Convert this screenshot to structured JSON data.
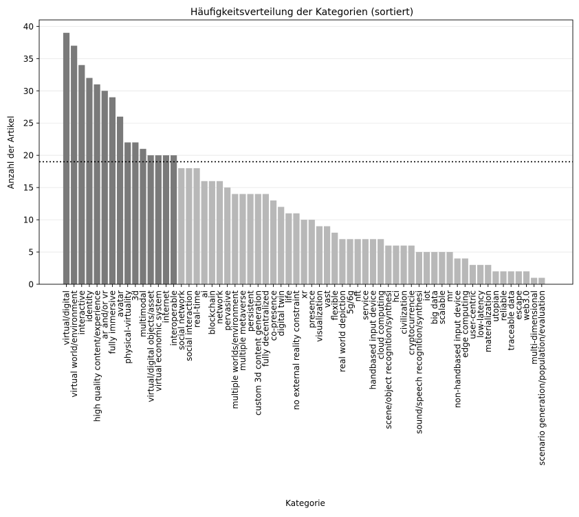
{
  "chart_data": {
    "type": "bar",
    "title": "Häufigkeitsverteilung der Kategorien (sortiert)",
    "xlabel": "Kategorie",
    "ylabel": "Anzahl der Artikel",
    "ylim": [
      0,
      41
    ],
    "yticks": [
      0,
      5,
      10,
      15,
      20,
      25,
      30,
      35,
      40
    ],
    "grid": "y",
    "threshold": 19,
    "highlight_color": "#7a7a7a",
    "base_color": "#b8b8b8",
    "highlighted_count": 15,
    "categories": [
      "virtual/digital",
      "virtual world/environment",
      "interactive",
      "identity",
      "high quality content/experience",
      "ar and/or vr",
      "fully immersive",
      "avatar",
      "physical-virtuality",
      "3d",
      "multimodal",
      "virtual/digital objects/asset",
      "virtual economic system",
      "internet",
      "interoperable",
      "social network",
      "social interaction",
      "real-time",
      "ai",
      "blockchain",
      "network",
      "pervasive",
      "multiple worlds/environment",
      "multiple metaverse",
      "persistent",
      "custom 3d content generation",
      "fully decentralized",
      "co-presence",
      "digital twin",
      "life",
      "no external reality constraint",
      "xr",
      "presence",
      "visualization",
      "vast",
      "flexible",
      "real world depiction",
      "5g/6g",
      "nft",
      "service",
      "handbased input device",
      "cloud computing",
      "scene/object recognition/synthesi",
      "hci",
      "civilization",
      "cryptocurrencie",
      "sound/speech recognition/synthesi",
      "iot",
      "big data",
      "scalable",
      "mr",
      "non-handbased input device",
      "edge computing",
      "user-centric",
      "low-latency",
      "materialization",
      "utopian",
      "reliable",
      "traceable data",
      "escape",
      "web3.0",
      "multi-dimensional",
      "scenario generation/population/evaluation"
    ],
    "values": [
      39,
      37,
      34,
      32,
      31,
      30,
      29,
      26,
      22,
      22,
      21,
      20,
      20,
      20,
      20,
      18,
      18,
      18,
      16,
      16,
      16,
      15,
      14,
      14,
      14,
      14,
      14,
      13,
      12,
      11,
      11,
      10,
      10,
      9,
      9,
      8,
      7,
      7,
      7,
      7,
      7,
      7,
      6,
      6,
      6,
      6,
      5,
      5,
      5,
      5,
      5,
      4,
      4,
      3,
      3,
      3,
      2,
      2,
      2,
      2,
      2,
      1,
      1
    ]
  }
}
